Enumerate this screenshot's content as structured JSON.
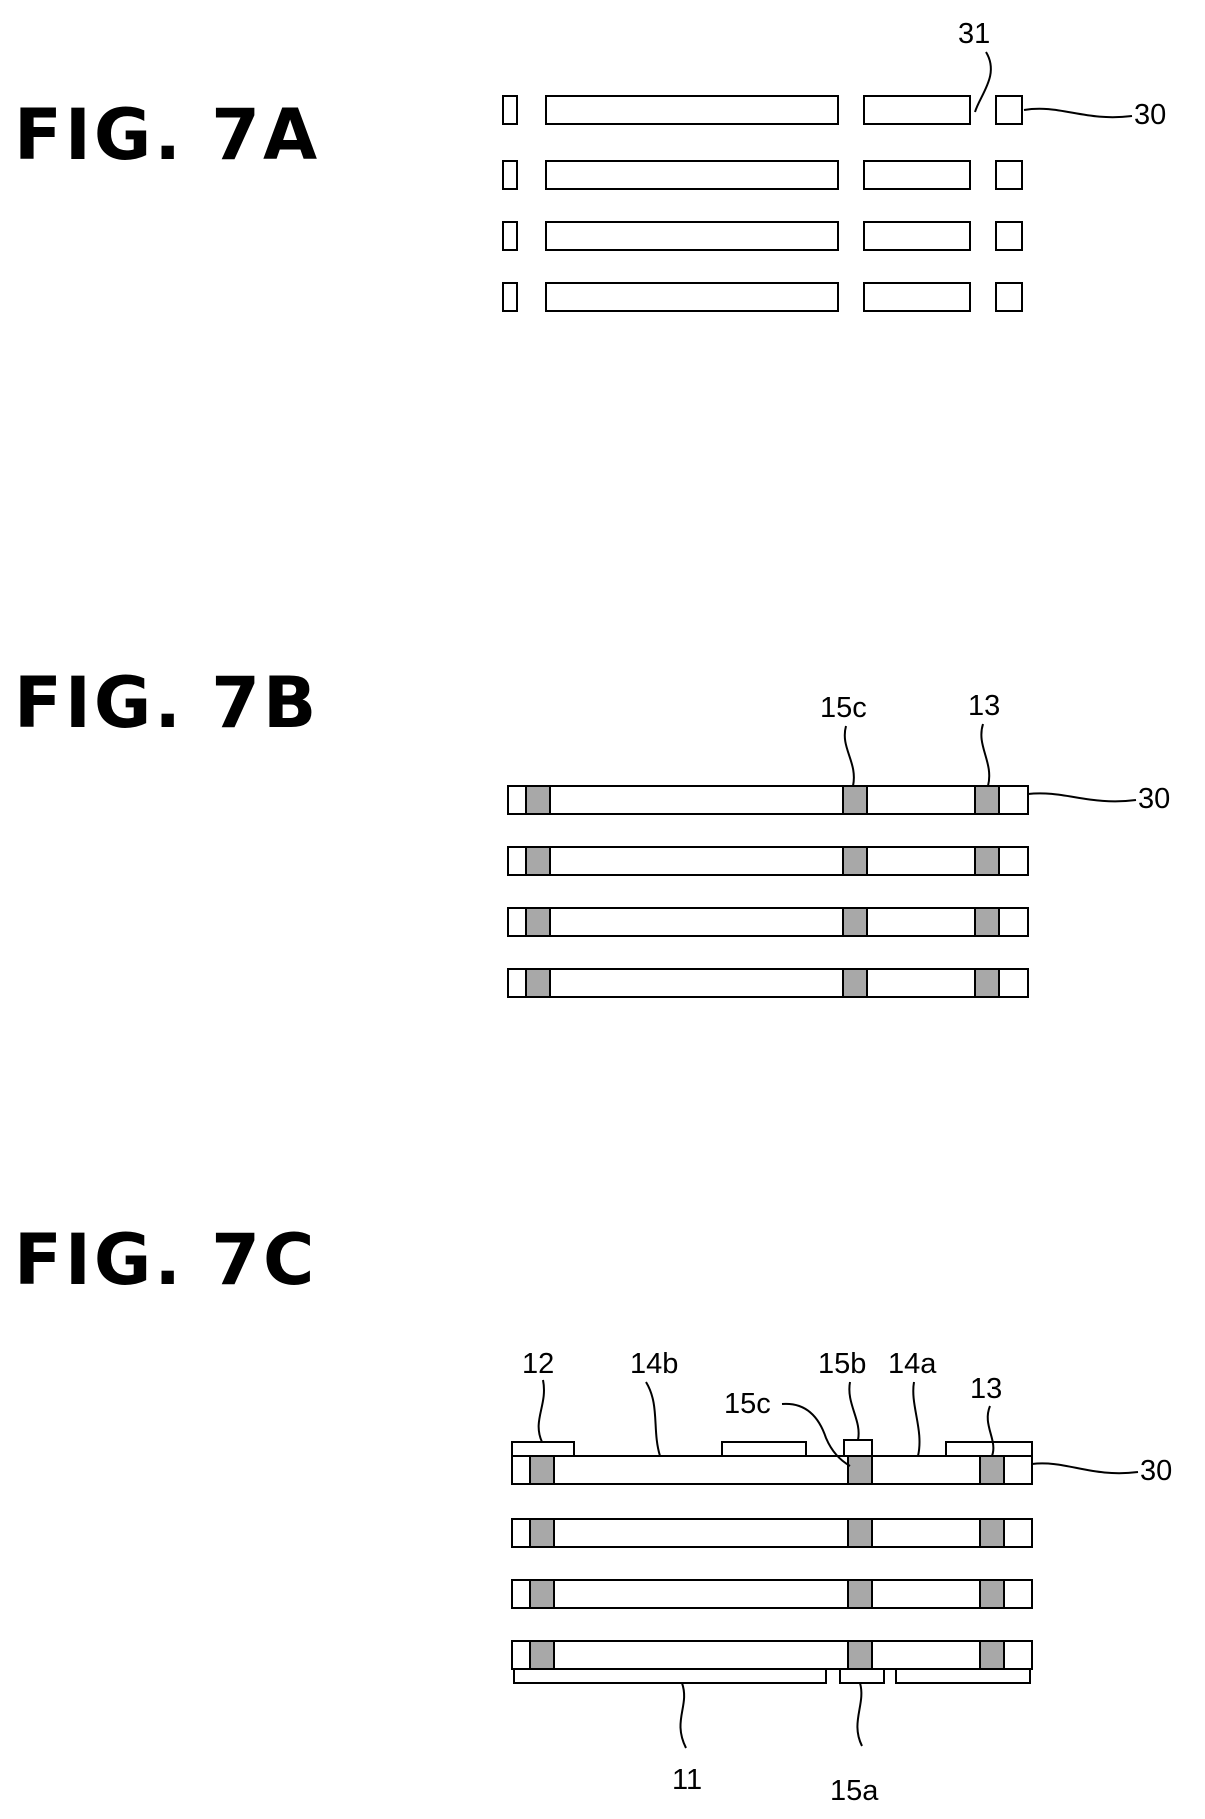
{
  "figures": {
    "a": {
      "title": "FIG. 7A",
      "labels": {
        "c31": "31",
        "c30": "30"
      }
    },
    "b": {
      "title": "FIG. 7B",
      "labels": {
        "c15c": "15c",
        "c13": "13",
        "c30": "30"
      }
    },
    "c": {
      "title": "FIG. 7C",
      "labels": {
        "c12": "12",
        "c14b": "14b",
        "c15b": "15b",
        "c14a": "14a",
        "c13": "13",
        "c15c": "15c",
        "c30": "30",
        "c11": "11",
        "c15a": "15a"
      }
    }
  },
  "colors": {
    "line": "#000000",
    "via_fill": "#a8a8a8",
    "background": "#ffffff"
  }
}
